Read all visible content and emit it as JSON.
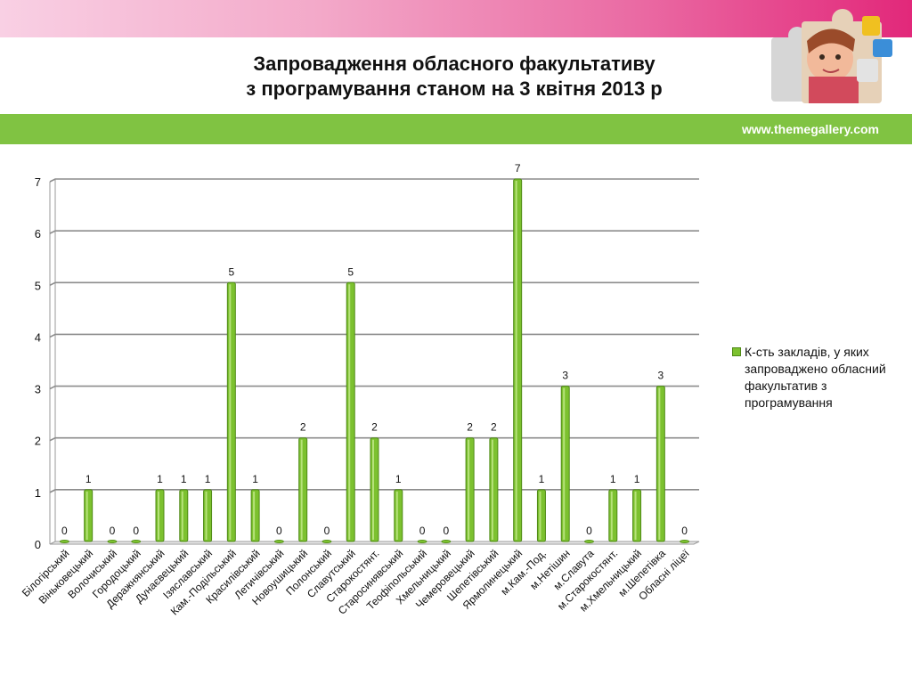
{
  "header": {
    "title_line1": "Запровадження обласного факультативу",
    "title_line2": "з програмування станом на 3 квітня 2013 р",
    "site_url": "www.themegallery.com"
  },
  "colors": {
    "bar_fill": "#7cc12f",
    "bar_edge": "#4f8a16",
    "gridline": "#8c8c8c",
    "green_band": "#80c342",
    "pink_band": "#e2287a"
  },
  "chart_data": {
    "type": "bar",
    "title": "",
    "xlabel": "",
    "ylabel": "",
    "ylim": [
      0,
      7
    ],
    "yticks": [
      0,
      1,
      2,
      3,
      4,
      5,
      6,
      7
    ],
    "grid": true,
    "legend_position": "right",
    "categories": [
      "Білогірський",
      "Віньковецький",
      "Волочиський",
      "Городоцький",
      "Деражнянський",
      "Дунаєвецький",
      "Ізяславський",
      "Кам.-Подільський",
      "Красилівський",
      "Летичівський",
      "Новоушицький",
      "Полонський",
      "Славутський",
      "Старокостянт.",
      "Старосинявський",
      "Теофіпольський",
      "Хмельницький",
      "Чемеровецький",
      "Шепетівський",
      "Ярмолинецький",
      "м.Кам.-Под.",
      "м.Нетішин",
      "м.Славута",
      "м.Старокостянт.",
      "м.Хмельницький",
      "м.Шепетівка",
      "Обласні ліцеї"
    ],
    "series": [
      {
        "name": "К-сть закладів, у яких запроваджено обласний факультатив з програмування",
        "values": [
          0,
          1,
          0,
          0,
          1,
          1,
          1,
          5,
          1,
          0,
          2,
          0,
          5,
          2,
          1,
          0,
          0,
          2,
          2,
          7,
          1,
          3,
          0,
          1,
          1,
          3,
          0
        ]
      }
    ]
  }
}
